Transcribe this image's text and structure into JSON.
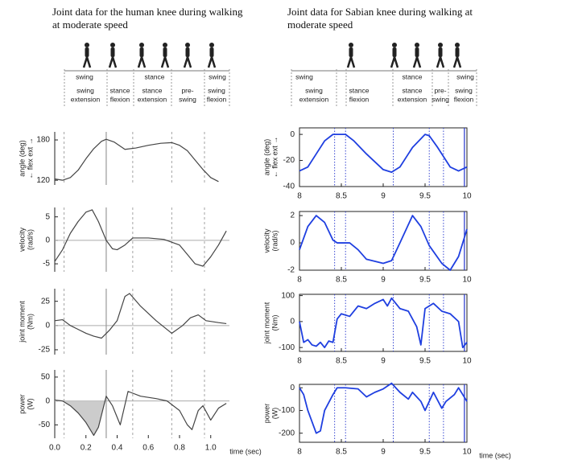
{
  "panels": [
    {
      "title": [
        "Joint data for the human knee during walking",
        "at moderate speed"
      ],
      "phases": [
        "swing",
        "stance",
        "swing"
      ],
      "subphases": [
        [
          "swing",
          "extension"
        ],
        [
          "stance",
          "flexion"
        ],
        [
          "stance",
          "extension"
        ],
        [
          "pre-",
          "swing"
        ],
        [
          "swing",
          "flexion"
        ]
      ]
    },
    {
      "title": [
        "Joint data for Sabian knee during walking at",
        "moderate speed"
      ],
      "phases": [
        "swing",
        "stance",
        "swing"
      ],
      "subphases": [
        [
          "swing",
          "extension"
        ],
        [
          "stance",
          "flexion"
        ],
        [
          "stance",
          "extension"
        ],
        [
          "pre-",
          "swing"
        ],
        [
          "swing",
          "flexion"
        ]
      ]
    }
  ],
  "chart_data": [
    {
      "type": "line",
      "ylabel": [
        "angle (deg)",
        "← flex   ext →"
      ],
      "color": "#444444",
      "x": [
        0,
        0.05,
        0.1,
        0.15,
        0.2,
        0.25,
        0.3,
        0.33,
        0.38,
        0.45,
        0.52,
        0.6,
        0.68,
        0.75,
        0.8,
        0.85,
        0.9,
        0.95,
        1.0,
        1.05
      ],
      "values": [
        122,
        120,
        124,
        135,
        152,
        167,
        178,
        181,
        177,
        166,
        168,
        172,
        175,
        176,
        172,
        164,
        150,
        136,
        124,
        118
      ],
      "xlim": [
        0,
        1.12
      ],
      "ylim": [
        113,
        192
      ],
      "yticks": [
        120,
        180
      ],
      "vlines": [
        0.06,
        0.33,
        0.5,
        0.75,
        0.96
      ],
      "vline_solid": [
        false,
        true,
        false,
        false,
        false
      ]
    },
    {
      "type": "line",
      "ylabel": [
        "velocity",
        "(rad/s)"
      ],
      "color": "#444444",
      "x": [
        0,
        0.05,
        0.1,
        0.15,
        0.2,
        0.24,
        0.28,
        0.33,
        0.37,
        0.4,
        0.45,
        0.5,
        0.6,
        0.7,
        0.8,
        0.85,
        0.9,
        0.95,
        1.0,
        1.05,
        1.1
      ],
      "values": [
        -4.5,
        -2,
        1.5,
        4,
        6,
        6.5,
        4,
        0,
        -1.8,
        -2,
        -1,
        0.5,
        0.5,
        0.2,
        -1,
        -3,
        -5,
        -5.5,
        -3.5,
        -1,
        2
      ],
      "xlim": [
        0,
        1.12
      ],
      "ylim": [
        -6.7,
        7
      ],
      "yticks": [
        -5,
        0,
        5
      ],
      "zero_line": true,
      "vlines": [
        0.06,
        0.33,
        0.5,
        0.75,
        0.96
      ],
      "vline_solid": [
        false,
        true,
        false,
        false,
        false
      ]
    },
    {
      "type": "line",
      "ylabel": [
        "joint moment",
        "(Nm)"
      ],
      "color": "#444444",
      "x": [
        0,
        0.05,
        0.1,
        0.15,
        0.2,
        0.25,
        0.3,
        0.35,
        0.4,
        0.45,
        0.48,
        0.55,
        0.65,
        0.75,
        0.82,
        0.87,
        0.92,
        0.97,
        1.05,
        1.1
      ],
      "values": [
        5,
        6,
        0,
        -4,
        -8,
        -11,
        -13,
        -5,
        5,
        30,
        33,
        20,
        5,
        -8,
        0,
        8,
        11,
        5,
        3,
        2
      ],
      "xlim": [
        0,
        1.12
      ],
      "ylim": [
        -30,
        38
      ],
      "yticks": [
        -25,
        0,
        25
      ],
      "zero_line": true,
      "vlines": [
        0.06,
        0.33,
        0.5,
        0.75,
        0.96
      ],
      "vline_solid": [
        false,
        true,
        false,
        false,
        false
      ]
    },
    {
      "type": "line",
      "ylabel": [
        "power",
        "(W)"
      ],
      "color": "#444444",
      "xlabel": "time (sec)",
      "x": [
        0,
        0.05,
        0.1,
        0.15,
        0.2,
        0.25,
        0.28,
        0.33,
        0.37,
        0.42,
        0.47,
        0.55,
        0.65,
        0.72,
        0.8,
        0.85,
        0.88,
        0.92,
        0.95,
        1.0,
        1.05,
        1.1
      ],
      "values": [
        2,
        0,
        -10,
        -25,
        -45,
        -72,
        -55,
        10,
        -10,
        -50,
        20,
        10,
        5,
        0,
        -20,
        -50,
        -60,
        -20,
        -10,
        -40,
        -15,
        -5
      ],
      "xlim": [
        0,
        1.12
      ],
      "ylim": [
        -78,
        65
      ],
      "yticks": [
        -50,
        0,
        50
      ],
      "zero_line": true,
      "shade_xlim": [
        0,
        0.33
      ],
      "xticks": [
        {
          "value": 0,
          "label": "0.0"
        },
        0.2,
        0.4,
        0.6,
        0.8,
        {
          "value": 1,
          "label": "1.0"
        }
      ],
      "vlines": [
        0.06,
        0.33,
        0.5,
        0.75,
        0.96
      ],
      "vline_solid": [
        false,
        true,
        false,
        false,
        false
      ]
    },
    {
      "type": "line",
      "ylabel": [
        "angle (deg)",
        "← flex   ext →"
      ],
      "color": "#1f3fe0",
      "x": [
        8,
        8.1,
        8.2,
        8.3,
        8.4,
        8.55,
        8.65,
        8.8,
        9.0,
        9.1,
        9.2,
        9.35,
        9.5,
        9.55,
        9.65,
        9.8,
        9.9,
        10
      ],
      "values": [
        -28,
        -25,
        -15,
        -5,
        0,
        0,
        -5,
        -15,
        -27,
        -29,
        -25,
        -10,
        0,
        -1,
        -10,
        -25,
        -28,
        -25
      ],
      "xlim": [
        8,
        10
      ],
      "ylim": [
        -40,
        5
      ],
      "yticks": [
        -40,
        -20,
        0
      ],
      "xticks": [
        8,
        8.5,
        9,
        9.5,
        10
      ],
      "vlines": [
        8.42,
        8.55,
        9.12,
        9.55,
        9.72,
        9.97
      ],
      "vline_solid": [
        false,
        false,
        false,
        false,
        false,
        true
      ]
    },
    {
      "type": "line",
      "ylabel": [
        "velocity",
        "(rad/s)"
      ],
      "color": "#1f3fe0",
      "x": [
        8,
        8.1,
        8.2,
        8.3,
        8.4,
        8.45,
        8.6,
        8.7,
        8.8,
        9.0,
        9.1,
        9.2,
        9.35,
        9.45,
        9.55,
        9.7,
        9.8,
        9.9,
        10
      ],
      "values": [
        -0.5,
        1.2,
        2,
        1.5,
        0.2,
        0,
        0,
        -0.5,
        -1.2,
        -1.5,
        -1.3,
        0,
        2,
        1.2,
        -0.2,
        -1.5,
        -2,
        -1,
        1
      ],
      "xlim": [
        8,
        10
      ],
      "ylim": [
        -2,
        2.3
      ],
      "yticks": [
        -2,
        0,
        2
      ],
      "xticks": [
        8,
        8.5,
        9,
        9.5,
        10
      ],
      "vlines": [
        8.42,
        8.55,
        9.12,
        9.55,
        9.72,
        9.97
      ],
      "vline_solid": [
        false,
        false,
        false,
        false,
        false,
        true
      ]
    },
    {
      "type": "line",
      "ylabel": [
        "joint moment",
        "(Nm)"
      ],
      "color": "#1f3fe0",
      "x": [
        8,
        8.05,
        8.1,
        8.15,
        8.2,
        8.25,
        8.3,
        8.35,
        8.4,
        8.45,
        8.5,
        8.6,
        8.7,
        8.8,
        8.9,
        9.0,
        9.05,
        9.1,
        9.2,
        9.3,
        9.4,
        9.45,
        9.5,
        9.6,
        9.7,
        9.8,
        9.9,
        9.95,
        10
      ],
      "values": [
        0,
        -80,
        -70,
        -90,
        -95,
        -80,
        -100,
        -75,
        -80,
        10,
        30,
        20,
        60,
        50,
        70,
        85,
        60,
        90,
        50,
        40,
        -20,
        -90,
        50,
        70,
        40,
        30,
        0,
        -100,
        -80
      ],
      "xlim": [
        8,
        10
      ],
      "ylim": [
        -115,
        105
      ],
      "yticks": [
        -100,
        0,
        100
      ],
      "xticks": [
        8,
        8.5,
        9,
        9.5,
        10
      ],
      "vlines": [
        8.42,
        8.55,
        9.12,
        9.55,
        9.72,
        9.97
      ],
      "vline_solid": [
        false,
        false,
        false,
        false,
        false,
        true
      ]
    },
    {
      "type": "line",
      "ylabel": [
        "power",
        "(W)"
      ],
      "color": "#1f3fe0",
      "xlabel": "time (sec)",
      "x": [
        8,
        8.05,
        8.1,
        8.15,
        8.2,
        8.25,
        8.3,
        8.4,
        8.45,
        8.55,
        8.7,
        8.8,
        8.9,
        9.0,
        9.1,
        9.2,
        9.3,
        9.35,
        9.45,
        9.5,
        9.6,
        9.7,
        9.75,
        9.85,
        9.9,
        9.95,
        10
      ],
      "values": [
        0,
        -30,
        -100,
        -150,
        -200,
        -190,
        -100,
        -30,
        0,
        0,
        -5,
        -40,
        -20,
        -5,
        20,
        -20,
        -50,
        -20,
        -60,
        -100,
        -20,
        -90,
        -60,
        -30,
        0,
        -30,
        -60
      ],
      "xlim": [
        8,
        10
      ],
      "ylim": [
        -240,
        15
      ],
      "yticks": [
        -200,
        -100,
        0
      ],
      "xticks": [
        8,
        8.5,
        9,
        9.5,
        10
      ],
      "vlines": [
        8.42,
        8.55,
        9.12,
        9.55,
        9.72,
        9.97
      ],
      "vline_solid": [
        false,
        false,
        false,
        false,
        false,
        true
      ]
    }
  ]
}
